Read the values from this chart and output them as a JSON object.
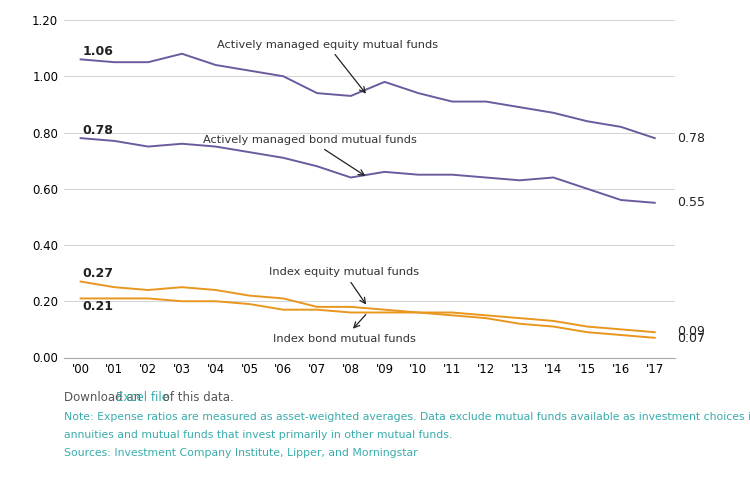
{
  "years": [
    2000,
    2001,
    2002,
    2003,
    2004,
    2005,
    2006,
    2007,
    2008,
    2009,
    2010,
    2011,
    2012,
    2013,
    2014,
    2015,
    2016,
    2017
  ],
  "active_equity": [
    1.06,
    1.05,
    1.05,
    1.08,
    1.04,
    1.02,
    1.0,
    0.94,
    0.93,
    0.98,
    0.94,
    0.91,
    0.91,
    0.89,
    0.87,
    0.84,
    0.82,
    0.78
  ],
  "active_bond": [
    0.78,
    0.77,
    0.75,
    0.76,
    0.75,
    0.73,
    0.71,
    0.68,
    0.64,
    0.66,
    0.65,
    0.65,
    0.64,
    0.63,
    0.64,
    0.6,
    0.56,
    0.55
  ],
  "index_equity": [
    0.27,
    0.25,
    0.24,
    0.25,
    0.24,
    0.22,
    0.21,
    0.18,
    0.18,
    0.17,
    0.16,
    0.16,
    0.15,
    0.14,
    0.13,
    0.11,
    0.1,
    0.09
  ],
  "index_bond": [
    0.21,
    0.21,
    0.21,
    0.2,
    0.2,
    0.19,
    0.17,
    0.17,
    0.16,
    0.16,
    0.16,
    0.15,
    0.14,
    0.12,
    0.11,
    0.09,
    0.08,
    0.07
  ],
  "purple_color": "#6B5B9E",
  "orange_color": "#E8961E",
  "teal_color": "#3AACAC",
  "note_color": "#3AACAC",
  "gray_text": "#444444",
  "ylim": [
    0.0,
    1.2
  ],
  "yticks": [
    0.0,
    0.2,
    0.4,
    0.6,
    0.8,
    1.0,
    1.2
  ],
  "note_line1": "Note: Expense ratios are measured as asset-weighted averages. Data exclude mutual funds available as investment choices in variable",
  "note_line2": "annuities and mutual funds that invest primarily in other mutual funds.",
  "sources_line": "Sources: Investment Company Institute, Lipper, and Morningstar"
}
